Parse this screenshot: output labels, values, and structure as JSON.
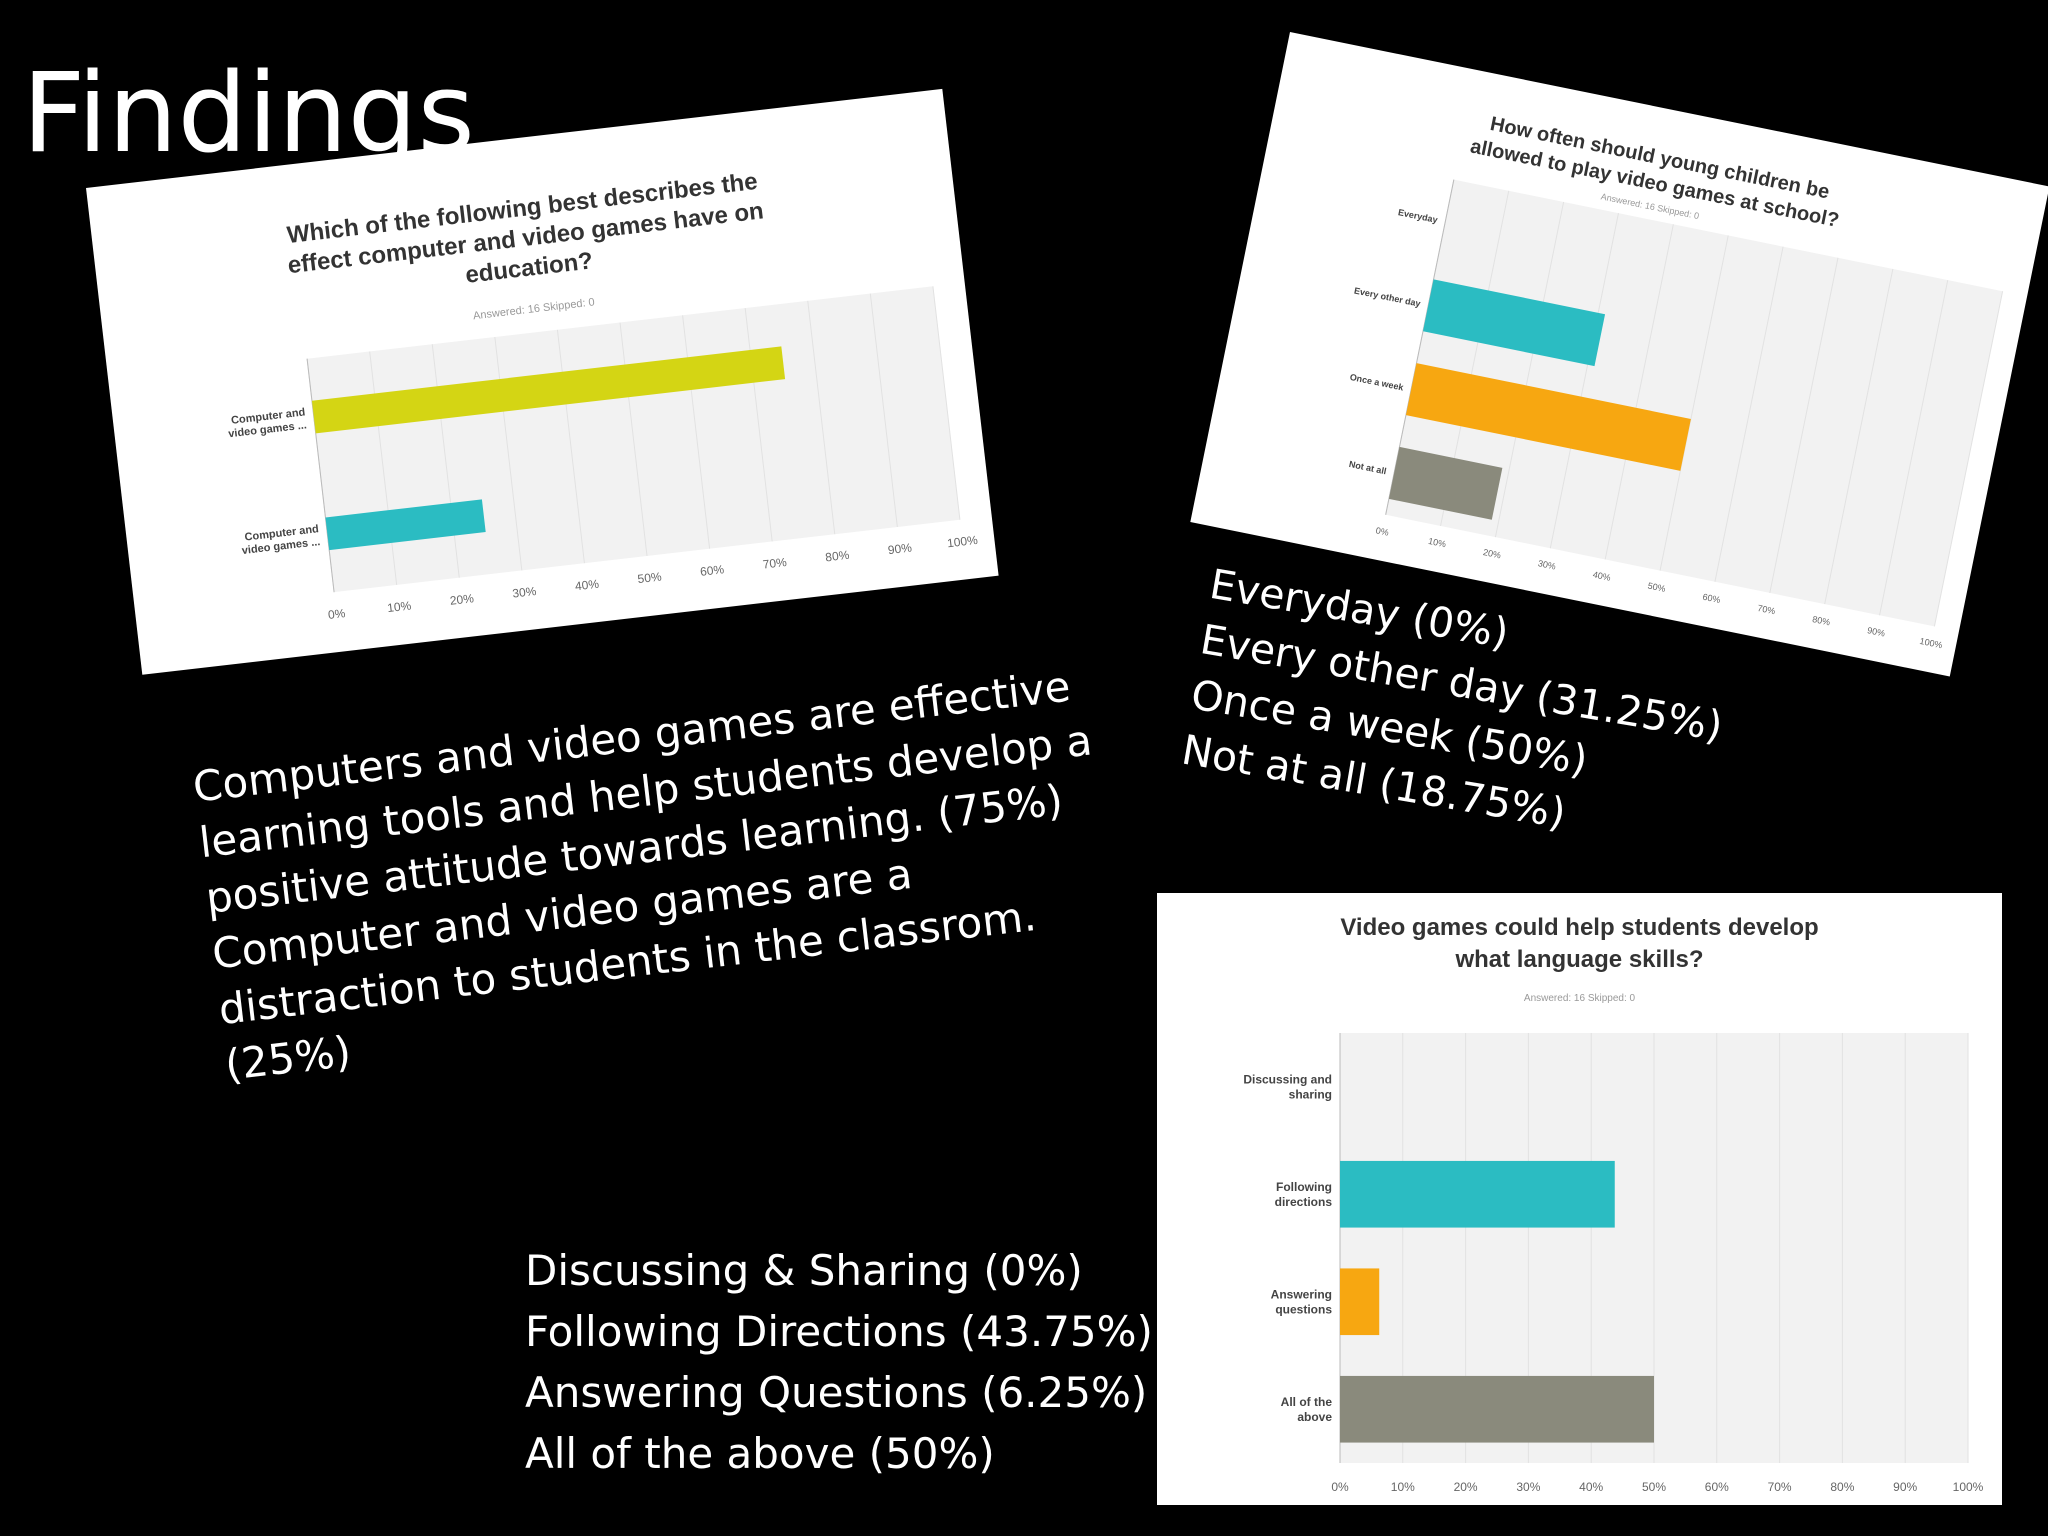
{
  "slide": {
    "title": "Findings"
  },
  "chart_data": [
    {
      "type": "bar",
      "orientation": "horizontal",
      "title": "Which of the following best describes the effect computer and video games have on education?",
      "title_lines": [
        "Which of the following best describes the",
        "effect computer and video games have on",
        "education?"
      ],
      "meta": "Answered: 16    Skipped: 0",
      "categories": [
        "Computer and video games ...",
        "Computer and video games ..."
      ],
      "category_label_lines": [
        [
          "Computer and",
          "video games ..."
        ],
        [
          "Computer and",
          "video games ..."
        ]
      ],
      "values": [
        75,
        25
      ],
      "colors": [
        "#d4d514",
        "#2bbcc2"
      ],
      "xlim": [
        0,
        100
      ],
      "x_ticks": [
        "0%",
        "10%",
        "20%",
        "30%",
        "40%",
        "50%",
        "60%",
        "70%",
        "80%",
        "90%",
        "100%"
      ],
      "grid": true
    },
    {
      "type": "bar",
      "orientation": "horizontal",
      "title": "How often should young children be allowed to play video games at school?",
      "title_lines": [
        "How often should young children be",
        "allowed to play video games at school?"
      ],
      "meta": "Answered: 16    Skipped: 0",
      "categories": [
        "Everyday",
        "Every other day",
        "Once a week",
        "Not at all"
      ],
      "category_label_lines": [
        [
          "Everyday"
        ],
        [
          "Every other day"
        ],
        [
          "Once a week"
        ],
        [
          "Not at all"
        ]
      ],
      "values": [
        0,
        31.25,
        50,
        18.75
      ],
      "colors": [
        "#2bbcc2",
        "#2bbcc2",
        "#f7a711",
        "#8a8a7c"
      ],
      "xlim": [
        0,
        100
      ],
      "x_ticks": [
        "0%",
        "10%",
        "20%",
        "30%",
        "40%",
        "50%",
        "60%",
        "70%",
        "80%",
        "90%",
        "100%"
      ],
      "grid": true
    },
    {
      "type": "bar",
      "orientation": "horizontal",
      "title": "Video games could help students develop what language skills?",
      "title_lines": [
        "Video games could help students develop",
        "what language skills?"
      ],
      "meta": "Answered: 16    Skipped: 0",
      "categories": [
        "Discussing and sharing",
        "Following directions",
        "Answering questions",
        "All of the above"
      ],
      "category_label_lines": [
        [
          "Discussing and",
          "sharing"
        ],
        [
          "Following",
          "directions"
        ],
        [
          "Answering",
          "questions"
        ],
        [
          "All of the",
          "above"
        ]
      ],
      "values": [
        0,
        43.75,
        6.25,
        50
      ],
      "colors": [
        "#2bbcc2",
        "#2bbcc2",
        "#f7a711",
        "#8a8a7c"
      ],
      "xlim": [
        0,
        100
      ],
      "x_ticks": [
        "0%",
        "10%",
        "20%",
        "30%",
        "40%",
        "50%",
        "60%",
        "70%",
        "80%",
        "90%",
        "100%"
      ],
      "grid": true
    }
  ],
  "summaries": {
    "summary_1": [
      "Computers and video games are effective",
      "learning tools and help students develop a",
      "positive attitude towards learning. (75%)",
      "Computer and video games are a",
      "distraction to students in the classrom.",
      "(25%)"
    ],
    "summary_2": [
      "Everyday (0%)",
      "Every other day (31.25%)",
      "Once a week (50%)",
      "Not at all (18.75%)"
    ],
    "summary_3": [
      "Discussing & Sharing (0%)",
      "Following Directions (43.75%)",
      "Answering Questions (6.25%)",
      "All of the above (50%)"
    ]
  }
}
